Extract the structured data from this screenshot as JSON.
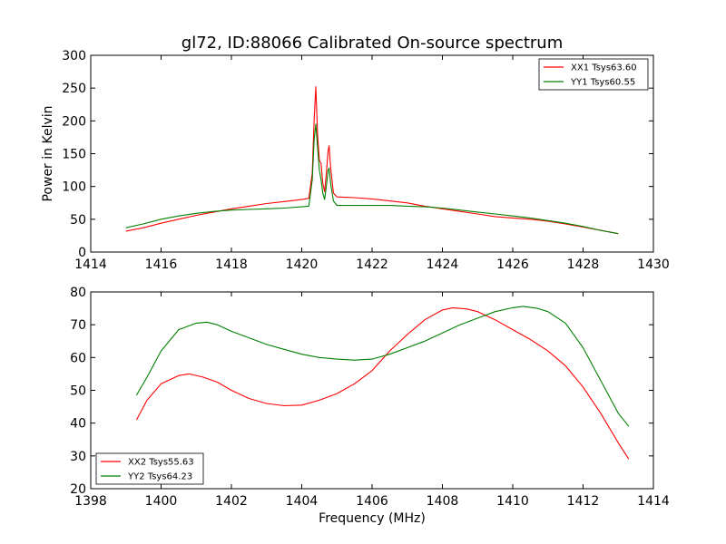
{
  "title": "gl72, ID:88066 Calibrated On-source spectrum",
  "chart_data": [
    {
      "type": "line",
      "xlabel": "",
      "ylabel": "Power in Kelvin",
      "xlim": [
        1414,
        1430
      ],
      "ylim": [
        0,
        300
      ],
      "xticks": [
        1414,
        1416,
        1418,
        1420,
        1422,
        1424,
        1426,
        1428,
        1430
      ],
      "yticks": [
        0,
        50,
        100,
        150,
        200,
        250,
        300
      ],
      "grid": false,
      "legend": "top-right",
      "series": [
        {
          "name": "XX1 Tsys63.60",
          "color": "#ff0000",
          "points": [
            [
              1415.0,
              32
            ],
            [
              1415.5,
              37
            ],
            [
              1416.0,
              44
            ],
            [
              1416.5,
              50
            ],
            [
              1417.0,
              56
            ],
            [
              1417.5,
              61
            ],
            [
              1418.0,
              66
            ],
            [
              1418.5,
              70
            ],
            [
              1419.0,
              74
            ],
            [
              1419.5,
              77
            ],
            [
              1420.0,
              80
            ],
            [
              1420.2,
              82
            ],
            [
              1420.3,
              120
            ],
            [
              1420.35,
              200
            ],
            [
              1420.4,
              252
            ],
            [
              1420.45,
              180
            ],
            [
              1420.5,
              140
            ],
            [
              1420.55,
              135
            ],
            [
              1420.6,
              105
            ],
            [
              1420.65,
              92
            ],
            [
              1420.7,
              120
            ],
            [
              1420.75,
              155
            ],
            [
              1420.78,
              162
            ],
            [
              1420.82,
              130
            ],
            [
              1420.9,
              90
            ],
            [
              1421.0,
              84
            ],
            [
              1421.5,
              83
            ],
            [
              1422.0,
              81
            ],
            [
              1422.5,
              78
            ],
            [
              1423.0,
              75
            ],
            [
              1423.5,
              70
            ],
            [
              1424.0,
              66
            ],
            [
              1424.5,
              62
            ],
            [
              1425.0,
              58
            ],
            [
              1425.5,
              54
            ],
            [
              1426.0,
              52
            ],
            [
              1426.5,
              50
            ],
            [
              1427.0,
              47
            ],
            [
              1427.5,
              43
            ],
            [
              1428.0,
              38
            ],
            [
              1428.5,
              33
            ],
            [
              1429.0,
              28
            ]
          ]
        },
        {
          "name": "YY1 Tsys60.55",
          "color": "#008000",
          "points": [
            [
              1415.0,
              37
            ],
            [
              1415.5,
              43
            ],
            [
              1416.0,
              50
            ],
            [
              1416.5,
              55
            ],
            [
              1417.0,
              59
            ],
            [
              1417.5,
              62
            ],
            [
              1418.0,
              64
            ],
            [
              1418.5,
              65
            ],
            [
              1419.0,
              66
            ],
            [
              1419.5,
              67
            ],
            [
              1420.0,
              69
            ],
            [
              1420.2,
              70
            ],
            [
              1420.3,
              110
            ],
            [
              1420.35,
              170
            ],
            [
              1420.4,
              195
            ],
            [
              1420.45,
              160
            ],
            [
              1420.5,
              125
            ],
            [
              1420.55,
              110
            ],
            [
              1420.6,
              90
            ],
            [
              1420.65,
              80
            ],
            [
              1420.7,
              100
            ],
            [
              1420.75,
              125
            ],
            [
              1420.78,
              128
            ],
            [
              1420.82,
              105
            ],
            [
              1420.9,
              78
            ],
            [
              1421.0,
              71
            ],
            [
              1421.5,
              71
            ],
            [
              1422.0,
              71
            ],
            [
              1422.5,
              71
            ],
            [
              1423.0,
              70
            ],
            [
              1423.5,
              69
            ],
            [
              1424.0,
              67
            ],
            [
              1424.5,
              64
            ],
            [
              1425.0,
              61
            ],
            [
              1425.5,
              58
            ],
            [
              1426.0,
              55
            ],
            [
              1426.5,
              52
            ],
            [
              1427.0,
              48
            ],
            [
              1427.5,
              44
            ],
            [
              1428.0,
              39
            ],
            [
              1428.5,
              33
            ],
            [
              1429.0,
              28
            ]
          ]
        }
      ]
    },
    {
      "type": "line",
      "xlabel": "Frequency (MHz)",
      "ylabel": "",
      "xlim": [
        1398,
        1414
      ],
      "ylim": [
        20,
        80
      ],
      "xticks": [
        1398,
        1400,
        1402,
        1404,
        1406,
        1408,
        1410,
        1412,
        1414
      ],
      "yticks": [
        20,
        30,
        40,
        50,
        60,
        70,
        80
      ],
      "grid": false,
      "legend": "bottom-left",
      "series": [
        {
          "name": "XX2 Tsys55.63",
          "color": "#ff0000",
          "points": [
            [
              1399.3,
              41
            ],
            [
              1399.6,
              47
            ],
            [
              1400.0,
              52
            ],
            [
              1400.5,
              54.5
            ],
            [
              1400.8,
              55
            ],
            [
              1401.2,
              54
            ],
            [
              1401.6,
              52.5
            ],
            [
              1402.0,
              50
            ],
            [
              1402.5,
              47.5
            ],
            [
              1403.0,
              46
            ],
            [
              1403.5,
              45.3
            ],
            [
              1404.0,
              45.5
            ],
            [
              1404.5,
              47
            ],
            [
              1405.0,
              49
            ],
            [
              1405.5,
              52
            ],
            [
              1406.0,
              56
            ],
            [
              1406.5,
              62
            ],
            [
              1407.0,
              67
            ],
            [
              1407.5,
              71.5
            ],
            [
              1408.0,
              74.5
            ],
            [
              1408.3,
              75.2
            ],
            [
              1408.7,
              74.8
            ],
            [
              1409.0,
              74
            ],
            [
              1409.5,
              71.5
            ],
            [
              1410.0,
              68.5
            ],
            [
              1410.5,
              65.5
            ],
            [
              1411.0,
              62
            ],
            [
              1411.5,
              57.5
            ],
            [
              1412.0,
              51
            ],
            [
              1412.5,
              43
            ],
            [
              1413.0,
              34
            ],
            [
              1413.3,
              29
            ]
          ]
        },
        {
          "name": "YY2 Tsys64.23",
          "color": "#008000",
          "points": [
            [
              1399.3,
              48.5
            ],
            [
              1399.6,
              54
            ],
            [
              1400.0,
              62
            ],
            [
              1400.5,
              68.5
            ],
            [
              1401.0,
              70.5
            ],
            [
              1401.3,
              70.8
            ],
            [
              1401.6,
              70
            ],
            [
              1402.0,
              68
            ],
            [
              1402.5,
              66
            ],
            [
              1403.0,
              64
            ],
            [
              1403.5,
              62.5
            ],
            [
              1404.0,
              61
            ],
            [
              1404.5,
              60
            ],
            [
              1405.0,
              59.5
            ],
            [
              1405.5,
              59.2
            ],
            [
              1406.0,
              59.5
            ],
            [
              1406.5,
              61
            ],
            [
              1407.0,
              63
            ],
            [
              1407.5,
              65
            ],
            [
              1408.0,
              67.5
            ],
            [
              1408.5,
              70
            ],
            [
              1409.0,
              72
            ],
            [
              1409.5,
              74
            ],
            [
              1410.0,
              75.2
            ],
            [
              1410.3,
              75.6
            ],
            [
              1410.7,
              75
            ],
            [
              1411.0,
              74
            ],
            [
              1411.5,
              70.5
            ],
            [
              1412.0,
              63
            ],
            [
              1412.5,
              53
            ],
            [
              1413.0,
              43
            ],
            [
              1413.3,
              39
            ]
          ]
        }
      ]
    }
  ]
}
